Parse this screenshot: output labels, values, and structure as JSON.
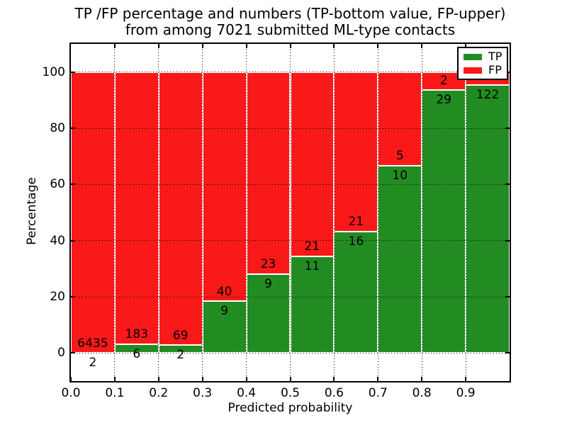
{
  "title": {
    "line1": "TP /FP percentage and numbers (TP-bottom value, FP-upper)",
    "line2": "from among 7021 submitted ML-type contacts"
  },
  "axes": {
    "xlabel": "Predicted probability",
    "ylabel": "Percentage",
    "xtick_labels": [
      "0.0",
      "0.1",
      "0.2",
      "0.3",
      "0.4",
      "0.5",
      "0.6",
      "0.7",
      "0.8",
      "0.9"
    ],
    "ytick_labels": [
      "0",
      "20",
      "40",
      "60",
      "80",
      "100"
    ]
  },
  "legend": {
    "items": [
      {
        "label": "TP",
        "color": "#228c22"
      },
      {
        "label": "FP",
        "color": "#fa1919"
      }
    ]
  },
  "chart_data": {
    "type": "bar",
    "stacked": true,
    "normalized_to_percent": true,
    "title": "TP /FP percentage and numbers (TP-bottom value, FP-upper) from among 7021 submitted ML-type contacts",
    "xlabel": "Predicted probability",
    "ylabel": "Percentage",
    "total_contacts": 7021,
    "categories": [
      "0.0-0.1",
      "0.1-0.2",
      "0.2-0.3",
      "0.3-0.4",
      "0.4-0.5",
      "0.5-0.6",
      "0.6-0.7",
      "0.7-0.8",
      "0.8-0.9",
      "0.9-1.0"
    ],
    "series": [
      {
        "name": "TP",
        "color": "#228c22",
        "counts": [
          2,
          6,
          2,
          9,
          9,
          11,
          16,
          10,
          29,
          122
        ]
      },
      {
        "name": "FP",
        "color": "#fa1919",
        "counts": [
          6435,
          183,
          69,
          40,
          23,
          21,
          21,
          5,
          2,
          null
        ]
      }
    ],
    "tp_percent": [
      0.03,
      3.17,
      2.82,
      18.37,
      28.13,
      34.38,
      43.24,
      66.67,
      93.55,
      95.31
    ],
    "tp_labels_visible": [
      "2",
      "6",
      "2",
      "9",
      "9",
      "11",
      "16",
      "10",
      "29",
      "122"
    ],
    "fp_labels_visible": [
      "6435",
      "183",
      "69",
      "40",
      "23",
      "21",
      "21",
      "5",
      "2",
      null
    ],
    "xticks": [
      0.0,
      0.1,
      0.2,
      0.3,
      0.4,
      0.5,
      0.6,
      0.7,
      0.8,
      0.9
    ],
    "yticks": [
      0,
      20,
      40,
      60,
      80,
      100
    ],
    "xlim": [
      0.0,
      1.0
    ],
    "ylim": [
      -10,
      110
    ],
    "grid": "dotted",
    "tick_direction": "in",
    "bar_edge_color": "#ffffff",
    "legend_position": "upper-right"
  }
}
